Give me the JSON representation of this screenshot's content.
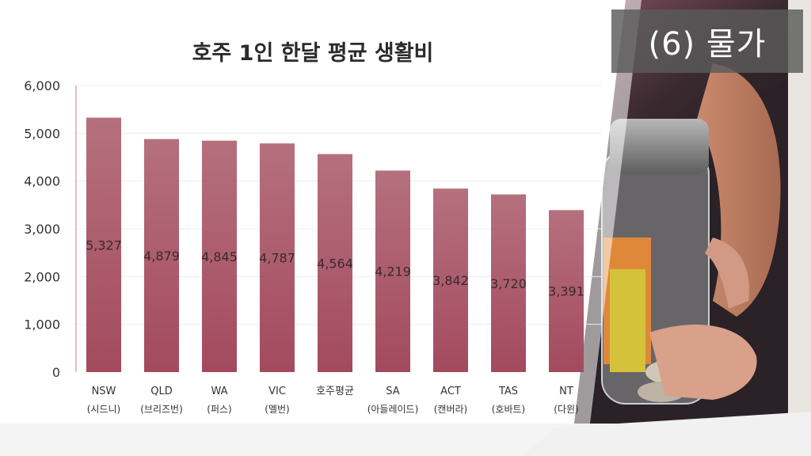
{
  "slide_badge": "(6) 물가",
  "colors": {
    "bar": "#a34a5e",
    "bar_top": "#b5707e",
    "axis": "#d9a9b4",
    "badge_bg": "#5a5a5a"
  },
  "chart_data": {
    "type": "bar",
    "title": "호주 1인 한달 평균 생활비",
    "categories": [
      "NSW",
      "QLD",
      "WA",
      "VIC",
      "호주평균",
      "SA",
      "ACT",
      "TAS",
      "NT"
    ],
    "category_sublabels": [
      "(시드니)",
      "(브리즈번)",
      "(퍼스)",
      "(멜번)",
      "",
      "(아들레이드)",
      "(캔버라)",
      "(호바트)",
      "(다윈)"
    ],
    "values": [
      5327,
      4879,
      4845,
      4787,
      4564,
      4219,
      3842,
      3720,
      3391
    ],
    "value_labels": [
      "5,327",
      "4,879",
      "4,845",
      "4,787",
      "4,564",
      "4,219",
      "3,842",
      "3,720",
      "3,391"
    ],
    "ylim": [
      0,
      6000
    ],
    "yticks": [
      "0",
      "1,000",
      "2,000",
      "3,000",
      "4,000",
      "5,000",
      "6,000"
    ],
    "ytick_values": [
      0,
      1000,
      2000,
      3000,
      4000,
      5000,
      6000
    ],
    "grid": true,
    "legend": "none"
  }
}
